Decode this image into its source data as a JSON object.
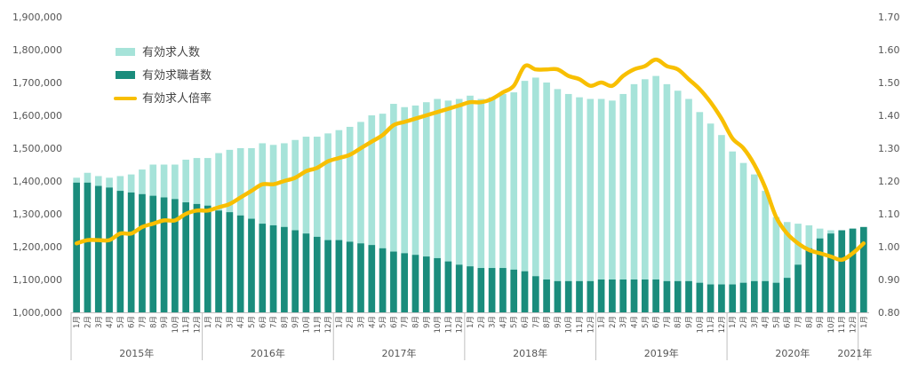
{
  "chart_data": {
    "type": "bar",
    "left_axis": {
      "min": 1000000,
      "max": 1900000,
      "ticks": [
        "1,900,000",
        "1,800,000",
        "1,700,000",
        "1,600,000",
        "1,500,000",
        "1,400,000",
        "1,300,000",
        "1,200,000",
        "1,100,000",
        "1,000,000"
      ]
    },
    "right_axis": {
      "min": 0.8,
      "max": 1.7,
      "ticks": [
        "1.70",
        "1.60",
        "1.50",
        "1.40",
        "1.30",
        "1.20",
        "1.10",
        "1.00",
        "0.90",
        "0.80"
      ]
    },
    "grid": false,
    "legend_position": "top-left",
    "month_labels": [
      "1月",
      "2月",
      "3月",
      "4月",
      "5月",
      "6月",
      "7月",
      "8月",
      "9月",
      "10月",
      "11月",
      "12月"
    ],
    "years": [
      "2015年",
      "2016年",
      "2017年",
      "2018年",
      "2019年",
      "2020年",
      "2021年"
    ],
    "last_month_label": "1月",
    "series": [
      {
        "name": "有効求人数",
        "kind": "bar",
        "color": "#a6e3d9",
        "values": [
          1410000,
          1425000,
          1415000,
          1410000,
          1415000,
          1420000,
          1435000,
          1450000,
          1450000,
          1450000,
          1465000,
          1470000,
          1470000,
          1485000,
          1495000,
          1500000,
          1500000,
          1515000,
          1510000,
          1515000,
          1525000,
          1535000,
          1535000,
          1545000,
          1555000,
          1565000,
          1580000,
          1600000,
          1605000,
          1635000,
          1625000,
          1630000,
          1640000,
          1650000,
          1645000,
          1650000,
          1660000,
          1650000,
          1655000,
          1665000,
          1670000,
          1705000,
          1715000,
          1700000,
          1680000,
          1665000,
          1655000,
          1650000,
          1650000,
          1645000,
          1665000,
          1695000,
          1710000,
          1720000,
          1695000,
          1675000,
          1650000,
          1610000,
          1575000,
          1540000,
          1490000,
          1455000,
          1420000,
          1370000,
          1290000,
          1275000,
          1270000,
          1265000,
          1255000,
          1250000,
          1250000,
          1255000,
          1245000
        ],
        "ylabel_axis": "left"
      },
      {
        "name": "有効求職者数",
        "kind": "bar",
        "color": "#1a8c7c",
        "values": [
          1395000,
          1395000,
          1385000,
          1380000,
          1370000,
          1365000,
          1360000,
          1355000,
          1350000,
          1345000,
          1335000,
          1330000,
          1325000,
          1310000,
          1305000,
          1295000,
          1285000,
          1270000,
          1265000,
          1260000,
          1250000,
          1240000,
          1230000,
          1220000,
          1220000,
          1215000,
          1210000,
          1205000,
          1195000,
          1185000,
          1180000,
          1175000,
          1170000,
          1165000,
          1155000,
          1145000,
          1140000,
          1135000,
          1135000,
          1135000,
          1130000,
          1125000,
          1110000,
          1100000,
          1095000,
          1095000,
          1095000,
          1095000,
          1100000,
          1100000,
          1100000,
          1100000,
          1100000,
          1100000,
          1095000,
          1095000,
          1095000,
          1090000,
          1085000,
          1085000,
          1085000,
          1090000,
          1095000,
          1095000,
          1090000,
          1105000,
          1145000,
          1195000,
          1225000,
          1240000,
          1250000,
          1255000,
          1260000
        ],
        "ylabel_axis": "left"
      },
      {
        "name": "有効求人倍率",
        "kind": "line",
        "color": "#f8bf00",
        "values": [
          1.01,
          1.02,
          1.02,
          1.02,
          1.04,
          1.04,
          1.06,
          1.07,
          1.08,
          1.08,
          1.1,
          1.11,
          1.11,
          1.12,
          1.13,
          1.15,
          1.17,
          1.19,
          1.19,
          1.2,
          1.21,
          1.23,
          1.24,
          1.26,
          1.27,
          1.28,
          1.3,
          1.32,
          1.34,
          1.37,
          1.38,
          1.39,
          1.4,
          1.41,
          1.42,
          1.43,
          1.44,
          1.44,
          1.45,
          1.47,
          1.49,
          1.55,
          1.54,
          1.54,
          1.54,
          1.52,
          1.51,
          1.49,
          1.5,
          1.49,
          1.52,
          1.54,
          1.55,
          1.57,
          1.55,
          1.54,
          1.51,
          1.48,
          1.44,
          1.39,
          1.33,
          1.3,
          1.25,
          1.18,
          1.09,
          1.04,
          1.01,
          0.99,
          0.98,
          0.97,
          0.96,
          0.98,
          1.01
        ],
        "ylabel_axis": "right"
      }
    ]
  }
}
